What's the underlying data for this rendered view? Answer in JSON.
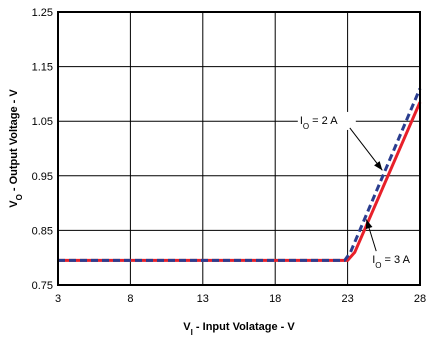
{
  "chart_data": {
    "type": "line",
    "title": "",
    "xlabel": {
      "main": "V",
      "sub": "I",
      "rest": " - Input Volatage - V"
    },
    "ylabel": {
      "main": "V",
      "sub": "O",
      "rest": " - Output Voltage - V"
    },
    "xlim": [
      3,
      28
    ],
    "ylim": [
      0.75,
      1.25
    ],
    "xticks": [
      3,
      8,
      13,
      18,
      23,
      28
    ],
    "xtick_labels": [
      "3",
      "8",
      "13",
      "18",
      "23",
      "28"
    ],
    "yticks": [
      0.75,
      0.85,
      0.95,
      1.05,
      1.15,
      1.25
    ],
    "ytick_labels": [
      "0.75",
      "0.85",
      "0.95",
      "1.05",
      "1.15",
      "1.25"
    ],
    "grid": true,
    "series": [
      {
        "name": {
          "main": "I",
          "sub": "O",
          "rest": " = 2 A"
        },
        "color": "#2a3d8f",
        "dash": "dashed",
        "x": [
          3,
          22.8,
          23.2,
          28
        ],
        "y": [
          0.795,
          0.795,
          0.81,
          1.11
        ]
      },
      {
        "name": {
          "main": "I",
          "sub": "O",
          "rest": " = 3 A"
        },
        "color": "#e8202a",
        "dash": "solid",
        "x": [
          3,
          23.0,
          23.5,
          28
        ],
        "y": [
          0.795,
          0.795,
          0.81,
          1.085
        ]
      }
    ],
    "annotations": [
      {
        "series_index": 0,
        "text_at": [
          19.7,
          1.045
        ],
        "arrow_to": [
          25.4,
          0.96
        ]
      },
      {
        "series_index": 1,
        "text_at": [
          24.7,
          0.79
        ],
        "arrow_to": [
          24.3,
          0.87
        ]
      }
    ]
  }
}
